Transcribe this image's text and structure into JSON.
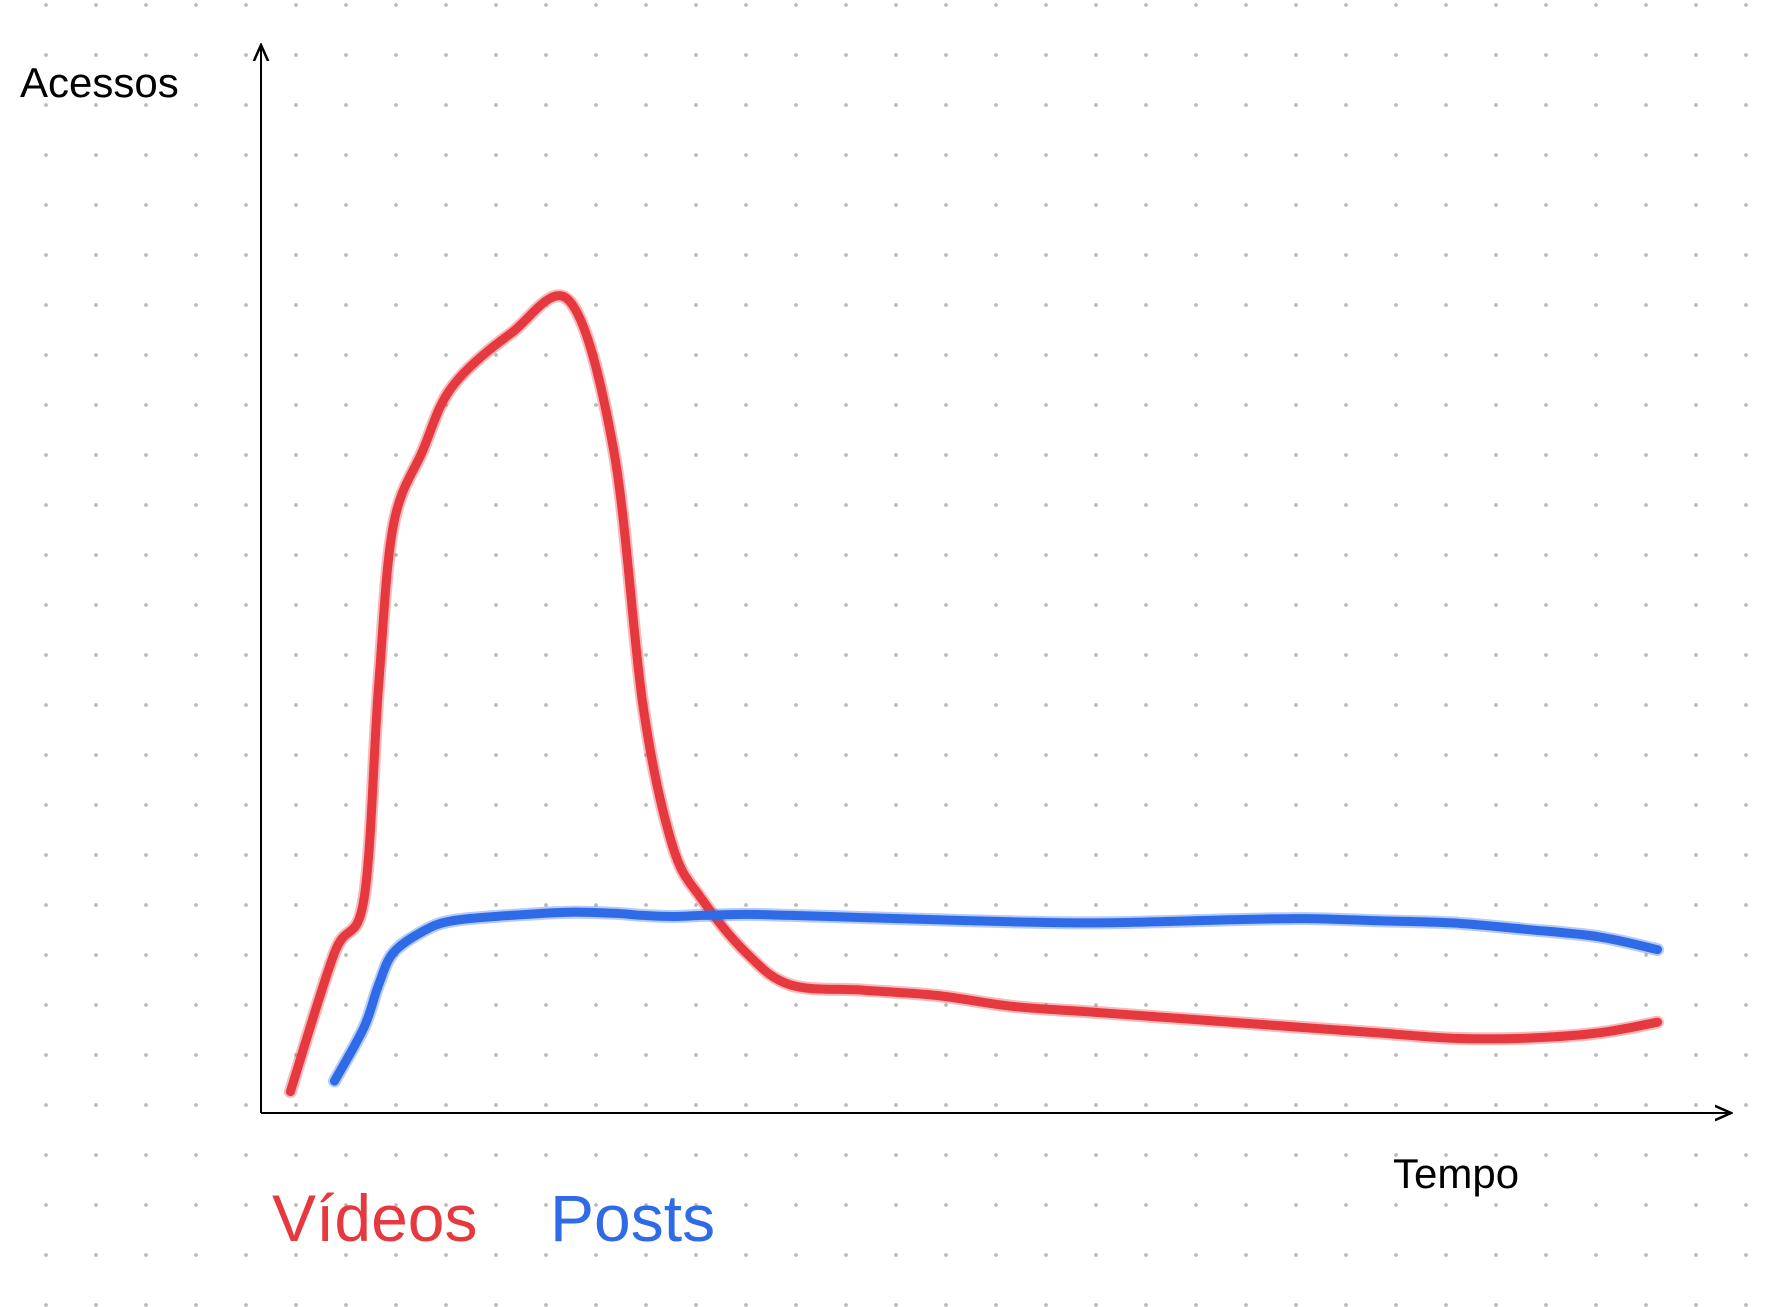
{
  "chart_data": {
    "type": "line",
    "xlabel": "Tempo",
    "ylabel": "Acessos",
    "x_ticks": [],
    "y_ticks": [],
    "grid": "dotted",
    "legend_placement": "bottom-left",
    "xlim": [
      0,
      100
    ],
    "ylim": [
      0,
      100
    ],
    "x": [
      2,
      5,
      7,
      8,
      9,
      11,
      13,
      17,
      21,
      24,
      26,
      28,
      30,
      33,
      36,
      41,
      46,
      51,
      56,
      61,
      66,
      71,
      76,
      81,
      86,
      91,
      95
    ],
    "series": [
      {
        "name": "Vídeos",
        "color": "#e5393f",
        "values": [
          2,
          15,
          20,
          40,
          55,
          62,
          68,
          73,
          76,
          62,
          38,
          25,
          20,
          15,
          12,
          11.5,
          11,
          10,
          9.5,
          9,
          8.5,
          8,
          7.5,
          7,
          7,
          7.5,
          8.5
        ]
      },
      {
        "name": "Posts",
        "color": "#2f6be6",
        "values": [
          null,
          3,
          8,
          12,
          15,
          17,
          18,
          18.5,
          18.8,
          18.7,
          18.5,
          18.4,
          18.5,
          18.6,
          18.5,
          18.3,
          18.1,
          17.9,
          17.8,
          17.9,
          18.1,
          18.2,
          18.0,
          17.8,
          17.2,
          16.5,
          15.3
        ]
      }
    ]
  }
}
